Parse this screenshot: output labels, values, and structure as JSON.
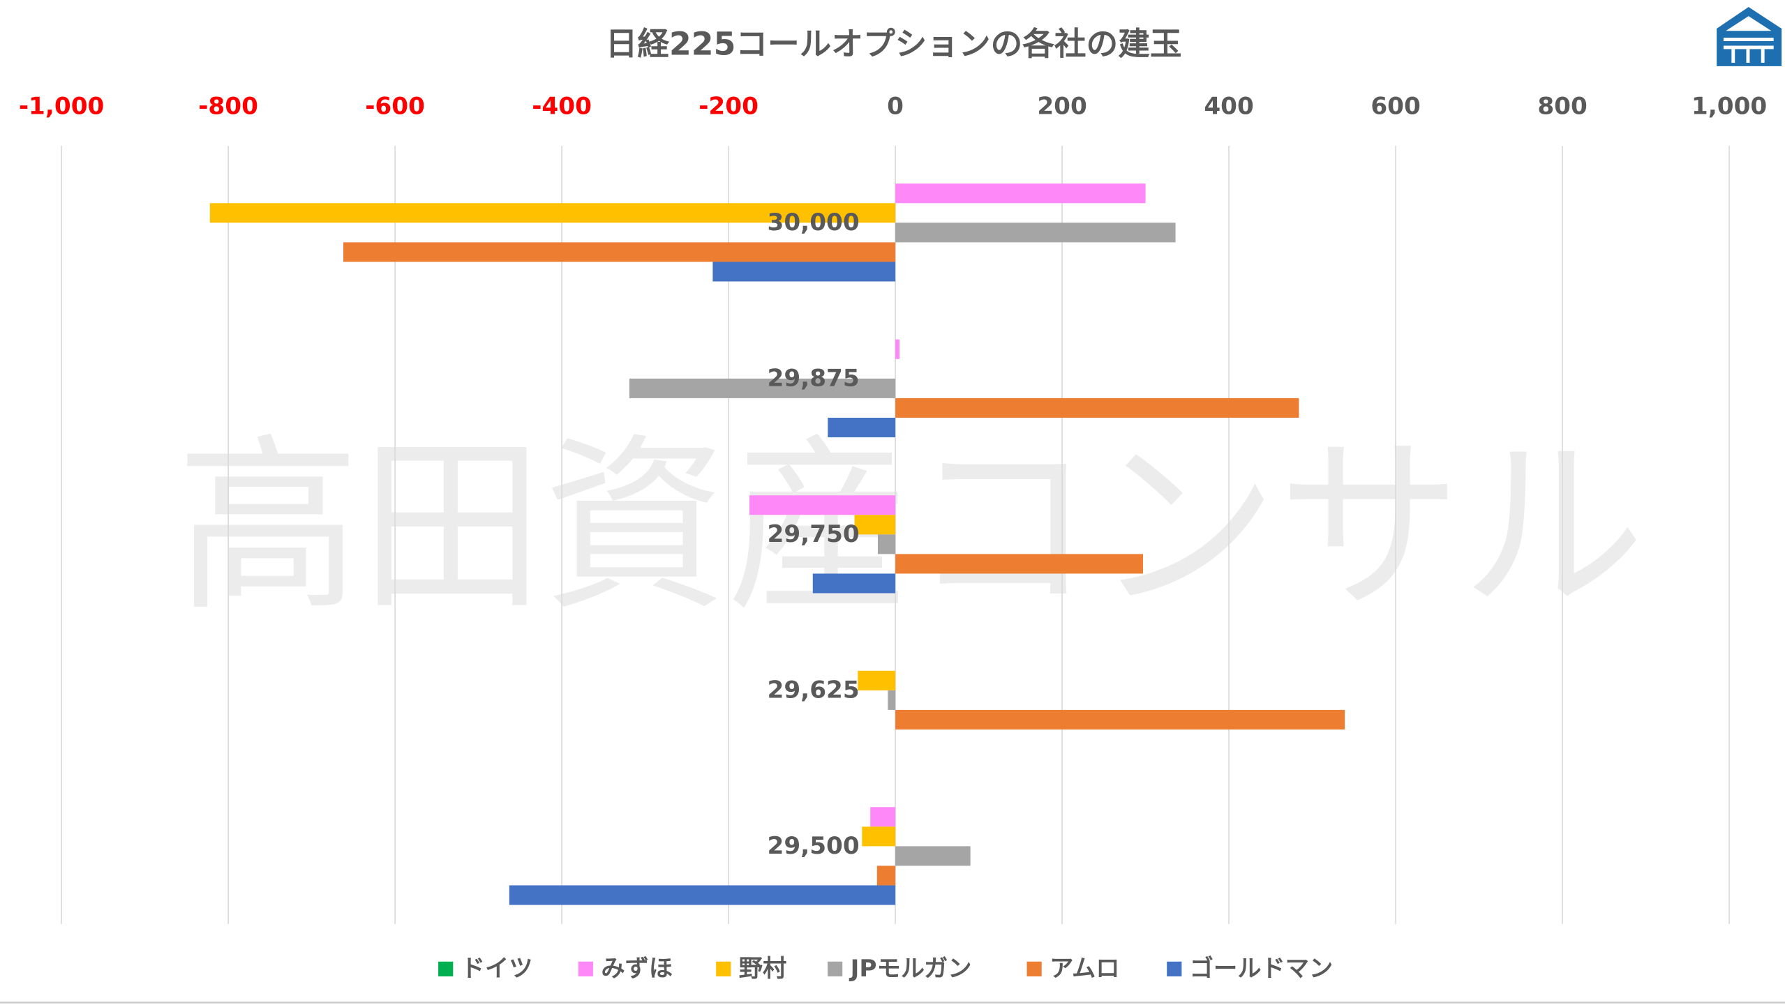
{
  "chart_data": {
    "type": "bar",
    "orientation": "horizontal",
    "title": "日経225コールオプションの各社の建玉",
    "xlabel": "",
    "ylabel": "",
    "xlim": [
      -1000,
      1000
    ],
    "x_ticks": [
      "-1,000",
      "-800",
      "-600",
      "-400",
      "-200",
      "0",
      "200",
      "400",
      "600",
      "800",
      "1,000"
    ],
    "x_tick_values": [
      -1000,
      -800,
      -600,
      -400,
      -200,
      0,
      200,
      400,
      600,
      800,
      1000
    ],
    "axis_position": "top",
    "grid": true,
    "legend_position": "bottom",
    "categories": [
      "30,000",
      "29,875",
      "29,750",
      "29,625",
      "29,500"
    ],
    "series": [
      {
        "name": "ドイツ",
        "color": "#00B050",
        "values": [
          0,
          0,
          0,
          0,
          0
        ]
      },
      {
        "name": "みずほ",
        "color": "#FF88F8",
        "values": [
          300,
          5,
          -175,
          0,
          -30
        ]
      },
      {
        "name": "野村",
        "color": "#FFC000",
        "values": [
          -822,
          0,
          -49,
          -45,
          -40
        ]
      },
      {
        "name": "JPモルガン",
        "color": "#A5A5A5",
        "values": [
          336,
          -319,
          -21,
          -9,
          90
        ]
      },
      {
        "name": "アムロ",
        "color": "#ED7D31",
        "values": [
          -662,
          484,
          297,
          539,
          -22
        ]
      },
      {
        "name": "ゴールドマン",
        "color": "#4472C4",
        "values": [
          -219,
          -81,
          -99,
          0,
          -463
        ]
      }
    ],
    "negative_tick_color": "#FF0000",
    "tick_color": "#595959"
  },
  "watermark": "高田資産コンサル"
}
